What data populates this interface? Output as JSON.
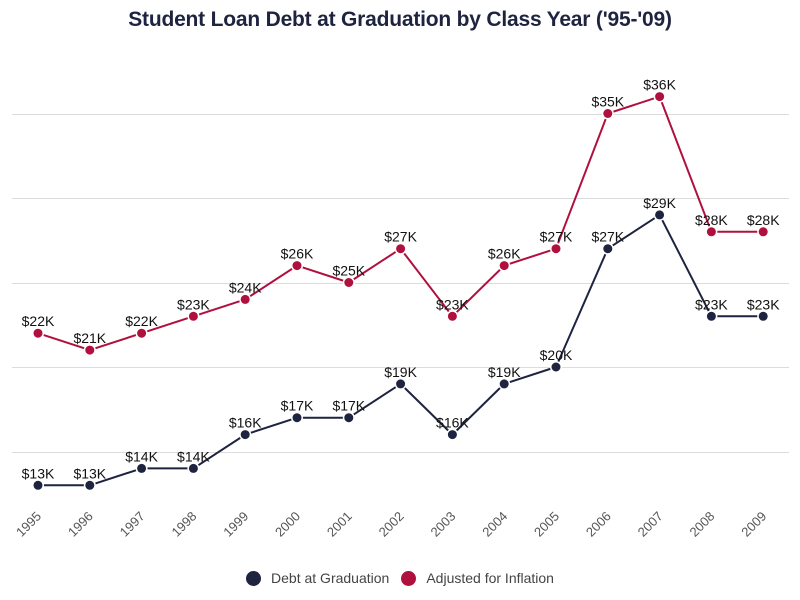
{
  "title": "Student Loan Debt at Graduation by Class Year ('95-'09)",
  "colors": {
    "debt": "#1e2340",
    "inflation": "#b0103e",
    "grid": "#dcdcdc"
  },
  "legend": [
    {
      "label": "Debt at Graduation",
      "color": "#1e2340"
    },
    {
      "label": "Adjusted for Inflation",
      "color": "#b0103e"
    }
  ],
  "chart_data": {
    "type": "line",
    "title": "Student Loan Debt at Graduation by Class Year ('95-'09)",
    "xlabel": "",
    "ylabel": "",
    "categories": [
      "1995",
      "1996",
      "1997",
      "1998",
      "1999",
      "2000",
      "2001",
      "2002",
      "2003",
      "2004",
      "2005",
      "2006",
      "2007",
      "2008",
      "2009"
    ],
    "series": [
      {
        "name": "Debt at Graduation",
        "color": "#1e2340",
        "values": [
          13,
          13,
          14,
          14,
          16,
          17,
          17,
          19,
          16,
          19,
          20,
          27,
          29,
          23,
          23
        ],
        "labels": [
          "$13K",
          "$13K",
          "$14K",
          "$14K",
          "$16K",
          "$17K",
          "$17K",
          "$19K",
          "$16K",
          "$19K",
          "$20K",
          "$27K",
          "$29K",
          "$23K",
          "$23K"
        ]
      },
      {
        "name": "Adjusted for Inflation",
        "color": "#b0103e",
        "values": [
          22,
          21,
          22,
          23,
          24,
          26,
          25,
          27,
          23,
          26,
          27,
          35,
          36,
          28,
          28
        ],
        "labels": [
          "$22K",
          "$21K",
          "$22K",
          "$23K",
          "$24K",
          "$26K",
          "$25K",
          "$27K",
          "$23K",
          "$26K",
          "$27K",
          "$35K",
          "$36K",
          "$28K",
          "$28K"
        ]
      }
    ],
    "gridlines": [
      15,
      20,
      25,
      30,
      35
    ],
    "y_tick_labels_visible": false,
    "grid": true,
    "legend_position": "bottom",
    "x_tick_rotation": -45
  }
}
